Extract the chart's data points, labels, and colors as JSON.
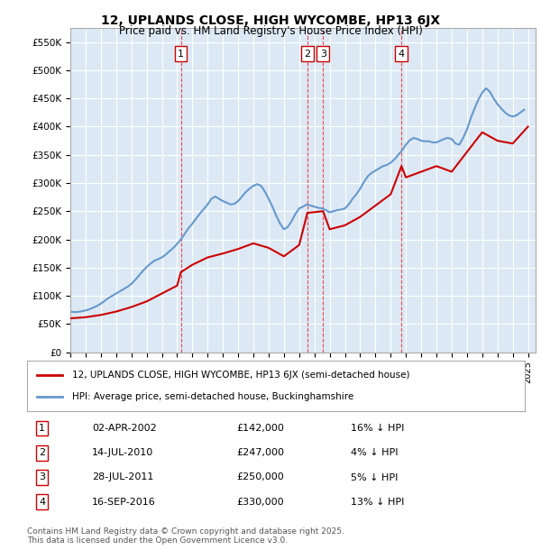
{
  "title": "12, UPLANDS CLOSE, HIGH WYCOMBE, HP13 6JX",
  "subtitle": "Price paid vs. HM Land Registry's House Price Index (HPI)",
  "ylabel": "",
  "ylim": [
    0,
    575000
  ],
  "yticks": [
    0,
    50000,
    100000,
    150000,
    200000,
    250000,
    300000,
    350000,
    400000,
    450000,
    500000,
    550000
  ],
  "background_color": "#dce9f5",
  "plot_bg_color": "#dce9f5",
  "transactions": [
    {
      "num": 1,
      "date_num": 2002.25,
      "price": 142000,
      "label": "02-APR-2002",
      "pct": "16% ↓ HPI"
    },
    {
      "num": 2,
      "date_num": 2010.54,
      "price": 247000,
      "label": "14-JUL-2010",
      "pct": "4% ↓ HPI"
    },
    {
      "num": 3,
      "date_num": 2011.57,
      "price": 250000,
      "label": "28-JUL-2011",
      "pct": "5% ↓ HPI"
    },
    {
      "num": 4,
      "date_num": 2016.71,
      "price": 330000,
      "label": "16-SEP-2016",
      "pct": "13% ↓ HPI"
    }
  ],
  "sale_color": "#cc0000",
  "hpi_color": "#6699cc",
  "hpi_line_color": "#6699cc",
  "legend_sale_label": "12, UPLANDS CLOSE, HIGH WYCOMBE, HP13 6JX (semi-detached house)",
  "legend_hpi_label": "HPI: Average price, semi-detached house, Buckinghamshire",
  "footer": "Contains HM Land Registry data © Crown copyright and database right 2025.\nThis data is licensed under the Open Government Licence v3.0.",
  "xmin": 1995,
  "xmax": 2025.5,
  "hpi_data": {
    "years": [
      1995.0,
      1995.25,
      1995.5,
      1995.75,
      1996.0,
      1996.25,
      1996.5,
      1996.75,
      1997.0,
      1997.25,
      1997.5,
      1997.75,
      1998.0,
      1998.25,
      1998.5,
      1998.75,
      1999.0,
      1999.25,
      1999.5,
      1999.75,
      2000.0,
      2000.25,
      2000.5,
      2000.75,
      2001.0,
      2001.25,
      2001.5,
      2001.75,
      2002.0,
      2002.25,
      2002.5,
      2002.75,
      2003.0,
      2003.25,
      2003.5,
      2003.75,
      2004.0,
      2004.25,
      2004.5,
      2004.75,
      2005.0,
      2005.25,
      2005.5,
      2005.75,
      2006.0,
      2006.25,
      2006.5,
      2006.75,
      2007.0,
      2007.25,
      2007.5,
      2007.75,
      2008.0,
      2008.25,
      2008.5,
      2008.75,
      2009.0,
      2009.25,
      2009.5,
      2009.75,
      2010.0,
      2010.25,
      2010.5,
      2010.75,
      2011.0,
      2011.25,
      2011.5,
      2011.75,
      2012.0,
      2012.25,
      2012.5,
      2012.75,
      2013.0,
      2013.25,
      2013.5,
      2013.75,
      2014.0,
      2014.25,
      2014.5,
      2014.75,
      2015.0,
      2015.25,
      2015.5,
      2015.75,
      2016.0,
      2016.25,
      2016.5,
      2016.75,
      2017.0,
      2017.25,
      2017.5,
      2017.75,
      2018.0,
      2018.25,
      2018.5,
      2018.75,
      2019.0,
      2019.25,
      2019.5,
      2019.75,
      2020.0,
      2020.25,
      2020.5,
      2020.75,
      2021.0,
      2021.25,
      2021.5,
      2021.75,
      2022.0,
      2022.25,
      2022.5,
      2022.75,
      2023.0,
      2023.25,
      2023.5,
      2023.75,
      2024.0,
      2024.25,
      2024.5,
      2024.75
    ],
    "values": [
      72000,
      71000,
      71500,
      72500,
      74000,
      76000,
      79000,
      82000,
      86000,
      91000,
      96000,
      100000,
      104000,
      108000,
      112000,
      116000,
      121000,
      128000,
      136000,
      144000,
      151000,
      157000,
      162000,
      165000,
      168000,
      173000,
      179000,
      185000,
      192000,
      200000,
      210000,
      220000,
      228000,
      237000,
      246000,
      254000,
      262000,
      272000,
      276000,
      272000,
      268000,
      265000,
      262000,
      263000,
      268000,
      276000,
      284000,
      290000,
      295000,
      298000,
      295000,
      285000,
      272000,
      258000,
      242000,
      228000,
      218000,
      222000,
      232000,
      245000,
      255000,
      258000,
      262000,
      260000,
      258000,
      256000,
      255000,
      252000,
      248000,
      250000,
      252000,
      253000,
      255000,
      262000,
      272000,
      280000,
      290000,
      302000,
      312000,
      318000,
      322000,
      326000,
      330000,
      332000,
      336000,
      342000,
      350000,
      358000,
      368000,
      376000,
      380000,
      378000,
      375000,
      374000,
      374000,
      372000,
      372000,
      375000,
      378000,
      380000,
      378000,
      370000,
      368000,
      380000,
      395000,
      415000,
      432000,
      448000,
      460000,
      468000,
      462000,
      450000,
      440000,
      432000,
      425000,
      420000,
      418000,
      420000,
      425000,
      430000
    ]
  },
  "sale_data": {
    "years": [
      1995.0,
      1996.0,
      1997.0,
      1998.0,
      1999.0,
      2000.0,
      2001.0,
      2002.0,
      2002.25,
      2003.0,
      2004.0,
      2005.0,
      2006.0,
      2007.0,
      2008.0,
      2009.0,
      2010.0,
      2010.54,
      2011.57,
      2012.0,
      2013.0,
      2014.0,
      2015.0,
      2016.0,
      2016.71,
      2017.0,
      2018.0,
      2019.0,
      2020.0,
      2021.0,
      2022.0,
      2023.0,
      2024.0,
      2025.0
    ],
    "values": [
      60000,
      62000,
      66000,
      72000,
      80000,
      90000,
      104000,
      118000,
      142000,
      155000,
      168000,
      175000,
      183000,
      193000,
      185000,
      170000,
      190000,
      247000,
      250000,
      218000,
      225000,
      240000,
      260000,
      280000,
      330000,
      310000,
      320000,
      330000,
      320000,
      355000,
      390000,
      375000,
      370000,
      400000
    ]
  }
}
